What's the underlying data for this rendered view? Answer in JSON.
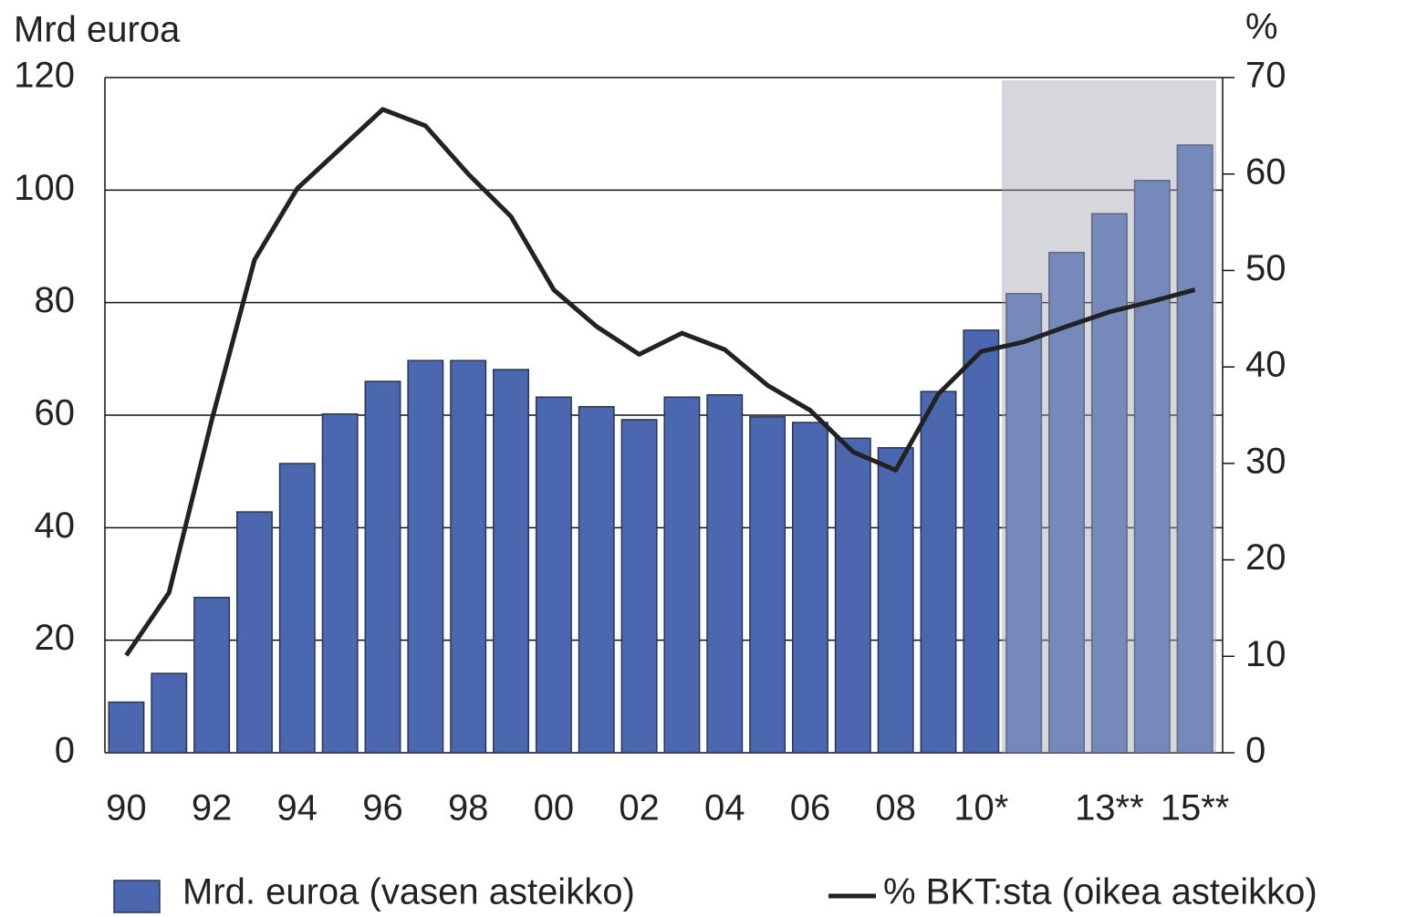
{
  "chart_data": {
    "type": "bar",
    "ylabel": "Mrd euroa",
    "y2label": "%",
    "categories": [
      "90",
      null,
      "92",
      null,
      "94",
      null,
      "96",
      null,
      "98",
      null,
      "00",
      null,
      "02",
      null,
      "04",
      null,
      "06",
      null,
      "08",
      null,
      "10*",
      null,
      null,
      "13**",
      null,
      "15**"
    ],
    "series": [
      {
        "name": "Mrd. euroa (vasen asteikko)",
        "type": "bar",
        "axis": "y",
        "color": "#4a67b0",
        "values": [
          9,
          14.1,
          27.6,
          42.8,
          51.4,
          60.2,
          66,
          69.7,
          69.7,
          68.1,
          63.2,
          61.5,
          59.2,
          63.2,
          63.6,
          59.7,
          58.7,
          55.9,
          54.2,
          64.2,
          75.1,
          81.6,
          88.9,
          95.8,
          101.7,
          108
        ]
      },
      {
        "name": "% BKT:sta (oikea asteikko)",
        "type": "line",
        "axis": "y2",
        "color": "#222222",
        "values": [
          10.1,
          16.6,
          34.5,
          51.1,
          58.5,
          62.6,
          66.7,
          65,
          60,
          55.6,
          48,
          44.2,
          41.3,
          43.5,
          41.8,
          38.1,
          35.5,
          31.2,
          29.3,
          37.2,
          41.6,
          42.6,
          44.2,
          45.7,
          46.8,
          48
        ]
      }
    ],
    "ylim": [
      0,
      120
    ],
    "yticks": [
      0,
      20,
      40,
      60,
      80,
      100,
      120
    ],
    "y2lim": [
      0,
      70
    ],
    "y2ticks": [
      0,
      10,
      20,
      30,
      40,
      50,
      60,
      70
    ],
    "grid": true
  }
}
